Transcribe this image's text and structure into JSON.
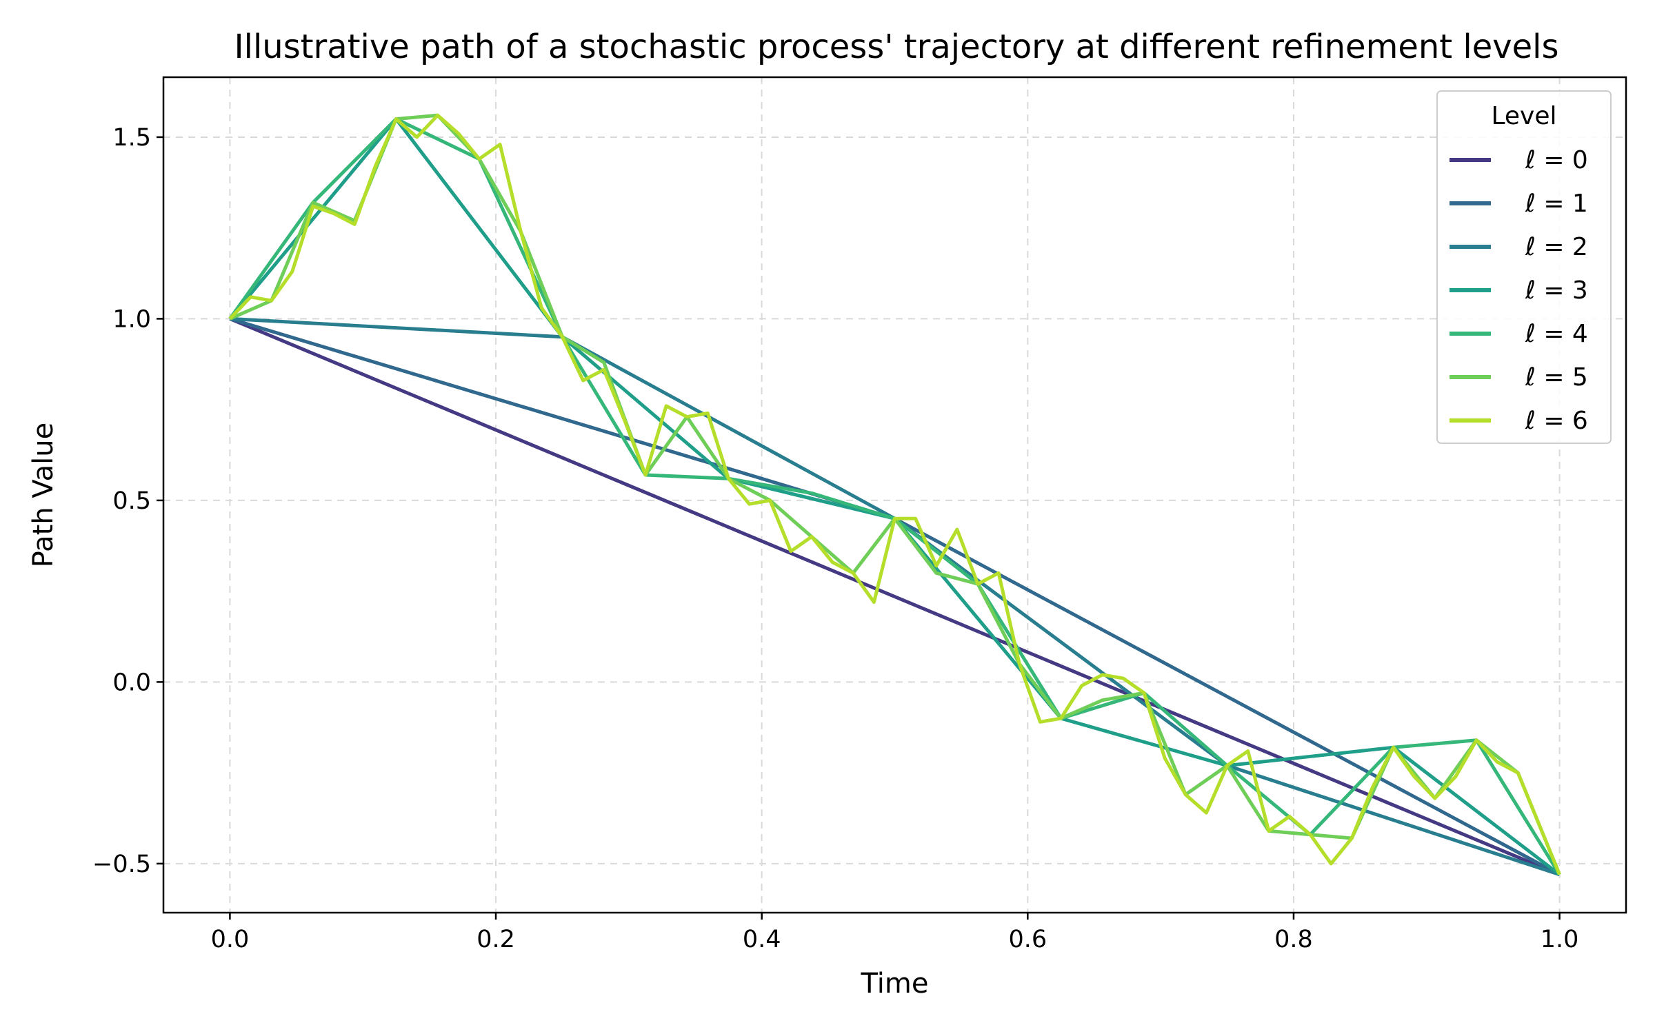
{
  "chart_data": {
    "type": "line",
    "title": "Illustrative path of a stochastic process' trajectory at different refinement levels",
    "xlabel": "Time",
    "ylabel": "Path Value",
    "xlim": [
      -0.05,
      1.05
    ],
    "ylim": [
      -0.635,
      1.665
    ],
    "xticks": [
      0.0,
      0.2,
      0.4,
      0.6,
      0.8,
      1.0
    ],
    "xtick_labels": [
      "0.0",
      "0.2",
      "0.4",
      "0.6",
      "0.8",
      "1.0"
    ],
    "yticks": [
      -0.5,
      0.0,
      0.5,
      1.0,
      1.5
    ],
    "ytick_labels": [
      "−0.5",
      "0.0",
      "0.5",
      "1.0",
      "1.5"
    ],
    "grid": true,
    "legend": {
      "title": "Level",
      "placement": "top-right"
    },
    "series": [
      {
        "name": "ℓ =  0",
        "color": "#443983",
        "x": [
          0,
          1
        ],
        "y": [
          1.0,
          -0.53
        ]
      },
      {
        "name": "ℓ =  1",
        "color": "#31688e",
        "x": [
          0,
          0.5,
          1
        ],
        "y": [
          1.0,
          0.45,
          -0.53
        ]
      },
      {
        "name": "ℓ =  2",
        "color": "#287d8e",
        "x": [
          0,
          0.25,
          0.5,
          0.75,
          1
        ],
        "y": [
          1.0,
          0.95,
          0.45,
          -0.23,
          -0.53
        ]
      },
      {
        "name": "ℓ =  3",
        "color": "#1f9e89",
        "x": [
          0,
          0.125,
          0.25,
          0.375,
          0.5,
          0.625,
          0.75,
          0.875,
          1
        ],
        "y": [
          1.0,
          1.55,
          0.95,
          0.56,
          0.45,
          -0.1,
          -0.23,
          -0.18,
          -0.53
        ]
      },
      {
        "name": "ℓ =  4",
        "color": "#35b779",
        "x": [
          0,
          0.0625,
          0.125,
          0.1875,
          0.25,
          0.3125,
          0.375,
          0.4375,
          0.5,
          0.5625,
          0.625,
          0.6875,
          0.75,
          0.8125,
          0.875,
          0.9375,
          1
        ],
        "y": [
          1.0,
          1.32,
          1.55,
          1.44,
          0.95,
          0.57,
          0.56,
          0.52,
          0.45,
          0.27,
          -0.1,
          -0.03,
          -0.23,
          -0.42,
          -0.18,
          -0.16,
          -0.53
        ]
      },
      {
        "name": "ℓ =  5",
        "color": "#6ece58",
        "x": [
          0,
          0.03125,
          0.0625,
          0.09375,
          0.125,
          0.15625,
          0.1875,
          0.21875,
          0.25,
          0.28125,
          0.3125,
          0.34375,
          0.375,
          0.40625,
          0.4375,
          0.46875,
          0.5,
          0.53125,
          0.5625,
          0.59375,
          0.625,
          0.65625,
          0.6875,
          0.71875,
          0.75,
          0.78125,
          0.8125,
          0.84375,
          0.875,
          0.90625,
          0.9375,
          0.96875,
          1
        ],
        "y": [
          1.0,
          1.05,
          1.32,
          1.27,
          1.55,
          1.56,
          1.44,
          1.24,
          0.95,
          0.88,
          0.57,
          0.73,
          0.56,
          0.5,
          0.4,
          0.3,
          0.45,
          0.3,
          0.27,
          0.05,
          -0.1,
          -0.05,
          -0.03,
          -0.31,
          -0.23,
          -0.41,
          -0.42,
          -0.43,
          -0.18,
          -0.32,
          -0.16,
          -0.25,
          -0.53
        ]
      },
      {
        "name": "ℓ =  6",
        "color": "#b5de2b",
        "x": [
          0,
          0.015625,
          0.03125,
          0.046875,
          0.0625,
          0.078125,
          0.09375,
          0.109375,
          0.125,
          0.140625,
          0.15625,
          0.171875,
          0.1875,
          0.203125,
          0.21875,
          0.234375,
          0.25,
          0.265625,
          0.28125,
          0.296875,
          0.3125,
          0.328125,
          0.34375,
          0.359375,
          0.375,
          0.390625,
          0.40625,
          0.421875,
          0.4375,
          0.453125,
          0.46875,
          0.484375,
          0.5,
          0.515625,
          0.53125,
          0.546875,
          0.5625,
          0.578125,
          0.59375,
          0.609375,
          0.625,
          0.640625,
          0.65625,
          0.671875,
          0.6875,
          0.703125,
          0.71875,
          0.734375,
          0.75,
          0.765625,
          0.78125,
          0.796875,
          0.8125,
          0.828125,
          0.84375,
          0.859375,
          0.875,
          0.890625,
          0.90625,
          0.921875,
          0.9375,
          0.953125,
          0.96875,
          0.984375,
          1
        ],
        "y": [
          1.0,
          1.06,
          1.05,
          1.13,
          1.31,
          1.29,
          1.26,
          1.42,
          1.55,
          1.5,
          1.56,
          1.51,
          1.44,
          1.48,
          1.24,
          1.03,
          0.95,
          0.83,
          0.86,
          0.72,
          0.57,
          0.76,
          0.73,
          0.74,
          0.56,
          0.49,
          0.5,
          0.36,
          0.4,
          0.33,
          0.3,
          0.22,
          0.45,
          0.45,
          0.32,
          0.42,
          0.27,
          0.3,
          0.05,
          -0.11,
          -0.1,
          -0.01,
          0.02,
          0.01,
          -0.03,
          -0.21,
          -0.31,
          -0.36,
          -0.23,
          -0.19,
          -0.41,
          -0.37,
          -0.42,
          -0.5,
          -0.43,
          -0.29,
          -0.18,
          -0.26,
          -0.32,
          -0.26,
          -0.16,
          -0.22,
          -0.25,
          -0.39,
          -0.53
        ]
      }
    ]
  }
}
